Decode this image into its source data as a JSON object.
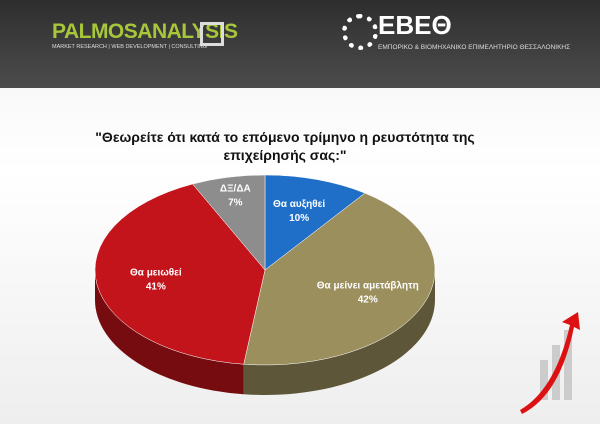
{
  "header": {
    "brand": "PALMOSANALYSIS",
    "brand_tagline": "MARKET RESEARCH | WEB DEVELOPMENT | CONSULTING",
    "partner": "ΕΒΕΘ",
    "partner_tagline": "ΕΜΠΟΡΙΚΟ & ΒΙΟΜΗΧΑΝΙΚΟ ΕΠΙΜΕΛΗΤΗΡΙΟ ΘΕΣΣΑΛΟΝΙΚΗΣ"
  },
  "chart_data": {
    "type": "pie",
    "title": "\"Θεωρείτε ότι κατά το επόμενο τρίμηνο η ρευστότητα της επιχείρησής σας:\"",
    "categories": [
      "Θα αυξηθεί",
      "Θα μείνει αμετάβλητη",
      "Θα μειωθεί",
      "ΔΞ/ΔΑ"
    ],
    "values": [
      10,
      42,
      41,
      7
    ],
    "value_labels": [
      "10%",
      "42%",
      "41%",
      "7%"
    ],
    "colors": [
      "#1f6fc8",
      "#9c8f5e",
      "#c4141b",
      "#8d8d8d"
    ]
  }
}
